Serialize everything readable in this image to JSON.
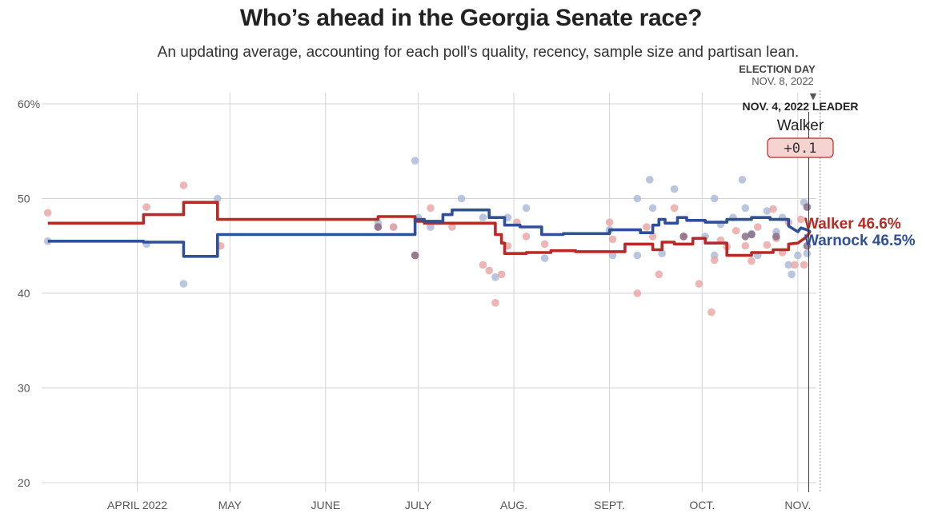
{
  "title": "Who’s ahead in the Georgia Senate race?",
  "subtitle": "An updating average, accounting for each poll’s quality, recency, sample size and partisan lean.",
  "election_day": {
    "label": "ELECTION DAY",
    "date": "NOV. 8, 2022",
    "arrow": "▼"
  },
  "leader_box": {
    "heading": "NOV. 4, 2022 LEADER",
    "name": "Walker",
    "margin": "+0.1"
  },
  "colors": {
    "walker": "#b82a25",
    "warnock": "#2f4f98",
    "walker_dot": "#e8a3a1",
    "warnock_dot": "#a9b6d8",
    "grid": "#d4d4d4"
  },
  "chart_data": {
    "type": "line",
    "title": "Who’s ahead in the Georgia Senate race?",
    "ylim": [
      20,
      60
    ],
    "xlim": [
      60,
      311
    ],
    "yticks": [
      {
        "value": 60,
        "label": "60%"
      },
      {
        "value": 50,
        "label": "50"
      },
      {
        "value": 40,
        "label": "40"
      },
      {
        "value": 30,
        "label": "30"
      },
      {
        "value": 20,
        "label": "20"
      }
    ],
    "xticks": [
      {
        "day": 91,
        "label": "APRIL 2022"
      },
      {
        "day": 121,
        "label": "MAY"
      },
      {
        "day": 152,
        "label": "JUNE"
      },
      {
        "day": 182,
        "label": "JULY"
      },
      {
        "day": 213,
        "label": "AUG."
      },
      {
        "day": 244,
        "label": "SEPT."
      },
      {
        "day": 274,
        "label": "OCT."
      },
      {
        "day": 305,
        "label": "NOV."
      }
    ],
    "election_day": 312,
    "leader_day": 308,
    "series": [
      {
        "name": "Walker",
        "end_label": "Walker 46.6%",
        "points": [
          [
            62,
            47.4
          ],
          [
            93,
            47.4
          ],
          [
            93,
            48.3
          ],
          [
            106,
            48.3
          ],
          [
            106,
            49.6
          ],
          [
            117,
            49.6
          ],
          [
            117,
            47.8
          ],
          [
            169,
            47.8
          ],
          [
            169,
            48.1
          ],
          [
            181,
            48.1
          ],
          [
            181,
            47.6
          ],
          [
            184,
            47.6
          ],
          [
            184,
            47.4
          ],
          [
            207,
            47.4
          ],
          [
            207,
            46.2
          ],
          [
            209,
            46.2
          ],
          [
            209,
            45.3
          ],
          [
            210,
            45.3
          ],
          [
            210,
            44.2
          ],
          [
            217,
            44.2
          ],
          [
            217,
            44.3
          ],
          [
            225,
            44.3
          ],
          [
            225,
            44.5
          ],
          [
            233,
            44.5
          ],
          [
            233,
            44.4
          ],
          [
            249,
            44.4
          ],
          [
            249,
            45.2
          ],
          [
            258,
            45.2
          ],
          [
            258,
            44.6
          ],
          [
            261,
            44.6
          ],
          [
            261,
            45.4
          ],
          [
            265,
            45.4
          ],
          [
            265,
            45.2
          ],
          [
            271,
            45.2
          ],
          [
            271,
            45.8
          ],
          [
            275,
            45.8
          ],
          [
            275,
            45.3
          ],
          [
            282,
            45.3
          ],
          [
            282,
            44.0
          ],
          [
            290,
            44.0
          ],
          [
            290,
            44.3
          ],
          [
            297,
            44.3
          ],
          [
            297,
            44.6
          ],
          [
            302,
            44.6
          ],
          [
            302,
            45.2
          ],
          [
            305,
            45.3
          ],
          [
            308,
            46.0
          ],
          [
            309,
            46.6
          ]
        ]
      },
      {
        "name": "Warnock",
        "end_label": "Warnock 46.5%",
        "points": [
          [
            62,
            45.5
          ],
          [
            93,
            45.5
          ],
          [
            93,
            45.4
          ],
          [
            106,
            45.4
          ],
          [
            106,
            43.9
          ],
          [
            117,
            43.9
          ],
          [
            117,
            46.2
          ],
          [
            181,
            46.2
          ],
          [
            181,
            47.8
          ],
          [
            184,
            47.8
          ],
          [
            184,
            47.6
          ],
          [
            190,
            47.6
          ],
          [
            190,
            48.3
          ],
          [
            193,
            48.3
          ],
          [
            193,
            48.8
          ],
          [
            205,
            48.8
          ],
          [
            205,
            48.0
          ],
          [
            210,
            48.0
          ],
          [
            210,
            47.2
          ],
          [
            215,
            47.2
          ],
          [
            215,
            47.0
          ],
          [
            222,
            47.0
          ],
          [
            222,
            46.2
          ],
          [
            229,
            46.2
          ],
          [
            229,
            46.3
          ],
          [
            244,
            46.3
          ],
          [
            244,
            46.7
          ],
          [
            254,
            46.7
          ],
          [
            254,
            46.4
          ],
          [
            258,
            46.4
          ],
          [
            258,
            47.2
          ],
          [
            260,
            47.2
          ],
          [
            260,
            47.8
          ],
          [
            262,
            47.8
          ],
          [
            262,
            47.4
          ],
          [
            266,
            47.4
          ],
          [
            266,
            48.0
          ],
          [
            269,
            48.0
          ],
          [
            269,
            47.7
          ],
          [
            275,
            47.7
          ],
          [
            275,
            47.5
          ],
          [
            282,
            47.5
          ],
          [
            282,
            47.8
          ],
          [
            290,
            47.8
          ],
          [
            290,
            48.0
          ],
          [
            296,
            48.0
          ],
          [
            296,
            47.8
          ],
          [
            302,
            47.8
          ],
          [
            302,
            47.1
          ],
          [
            305,
            46.5
          ],
          [
            306,
            46.9
          ],
          [
            308,
            46.7
          ],
          [
            309,
            46.5
          ]
        ]
      }
    ],
    "polls": {
      "walker": [
        [
          62,
          48.5
        ],
        [
          94,
          49.1
        ],
        [
          106,
          51.4
        ],
        [
          118,
          45.0
        ],
        [
          169,
          47.0
        ],
        [
          174,
          47.0
        ],
        [
          181,
          44.0
        ],
        [
          186,
          49.0
        ],
        [
          193,
          47.0
        ],
        [
          203,
          43.0
        ],
        [
          205,
          42.4
        ],
        [
          207,
          39.0
        ],
        [
          209,
          42.0
        ],
        [
          211,
          45.0
        ],
        [
          214,
          47.5
        ],
        [
          217,
          46.0
        ],
        [
          223,
          45.2
        ],
        [
          244,
          47.5
        ],
        [
          245,
          45.7
        ],
        [
          253,
          40.0
        ],
        [
          256,
          47.0
        ],
        [
          258,
          46.0
        ],
        [
          260,
          42.0
        ],
        [
          265,
          49.0
        ],
        [
          268,
          46.0
        ],
        [
          273,
          41.0
        ],
        [
          277,
          38.0
        ],
        [
          278,
          43.5
        ],
        [
          280,
          45.6
        ],
        [
          282,
          44.9
        ],
        [
          285,
          46.6
        ],
        [
          288,
          45.0
        ],
        [
          290,
          43.4
        ],
        [
          292,
          47.0
        ],
        [
          295,
          45.1
        ],
        [
          297,
          48.9
        ],
        [
          298,
          45.8
        ],
        [
          300,
          44.3
        ],
        [
          302,
          47.5
        ],
        [
          304,
          43.0
        ],
        [
          306,
          47.8
        ],
        [
          307,
          43.0
        ]
      ],
      "warnock": [
        [
          62,
          45.5
        ],
        [
          94,
          45.2
        ],
        [
          106,
          41.0
        ],
        [
          117,
          50.0
        ],
        [
          169,
          47.4
        ],
        [
          174,
          47.0
        ],
        [
          181,
          54.0
        ],
        [
          182,
          48.0
        ],
        [
          186,
          47.0
        ],
        [
          196,
          50.0
        ],
        [
          203,
          48.0
        ],
        [
          207,
          41.7
        ],
        [
          211,
          48.0
        ],
        [
          217,
          49.0
        ],
        [
          223,
          43.7
        ],
        [
          244,
          46.7
        ],
        [
          245,
          44.0
        ],
        [
          253,
          50.0
        ],
        [
          253,
          44.0
        ],
        [
          257,
          52.0
        ],
        [
          258,
          49.0
        ],
        [
          261,
          44.2
        ],
        [
          265,
          51.0
        ],
        [
          275,
          46.0
        ],
        [
          278,
          50.0
        ],
        [
          278,
          44.0
        ],
        [
          280,
          47.3
        ],
        [
          284,
          48.0
        ],
        [
          287,
          52.0
        ],
        [
          288,
          49.0
        ],
        [
          290,
          46.3
        ],
        [
          292,
          44.0
        ],
        [
          295,
          48.7
        ],
        [
          298,
          46.5
        ],
        [
          300,
          48.0
        ],
        [
          302,
          43.0
        ],
        [
          303,
          42.0
        ],
        [
          305,
          44.0
        ],
        [
          307,
          49.6
        ],
        [
          308,
          44.2
        ]
      ],
      "overlap": [
        [
          169,
          47.0
        ],
        [
          181,
          44.0
        ],
        [
          268,
          46.0
        ],
        [
          288,
          46.0
        ],
        [
          290,
          46.2
        ],
        [
          298,
          46.0
        ],
        [
          308,
          49.1
        ],
        [
          308,
          45.0
        ]
      ]
    }
  }
}
